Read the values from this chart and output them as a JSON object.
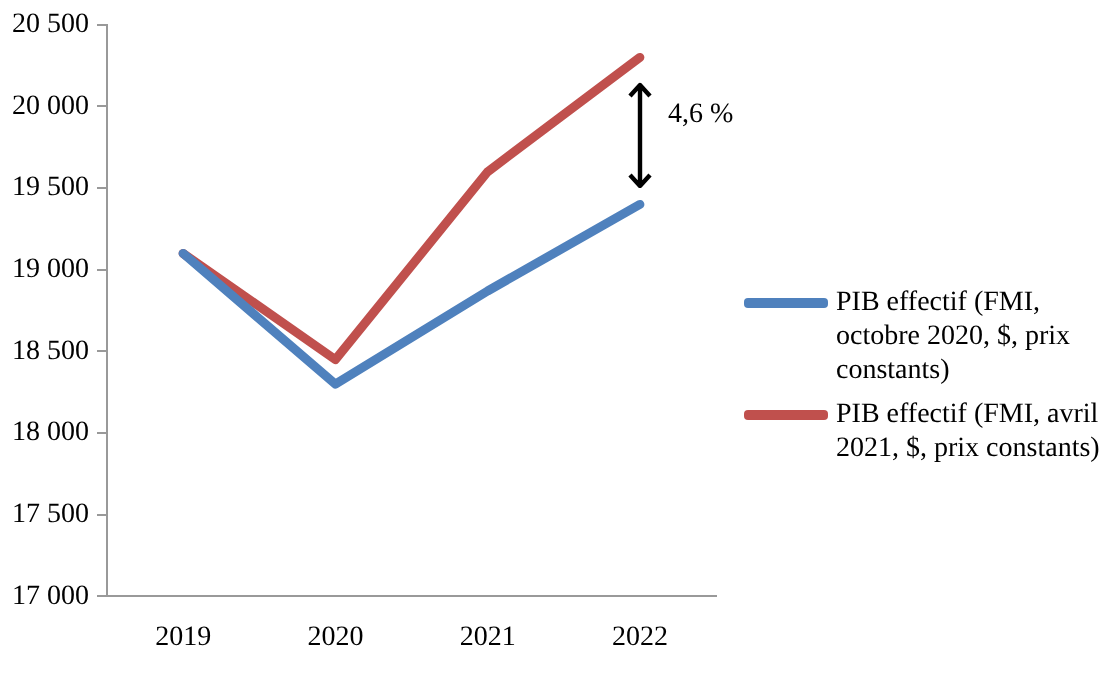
{
  "chart_data": {
    "type": "line",
    "categories": [
      "2019",
      "2020",
      "2021",
      "2022"
    ],
    "series": [
      {
        "name": "PIB effectif (FMI, octobre 2020, $, prix constants)",
        "color": "#4f81bd",
        "values": [
          19100,
          18300,
          18870,
          19400
        ]
      },
      {
        "name": "PIB effectif (FMI, avril 2021, $, prix constants)",
        "color": "#c0504d",
        "values": [
          19100,
          18450,
          19600,
          20300
        ]
      }
    ],
    "ylim": [
      17000,
      20500
    ],
    "yticks": [
      {
        "value": 17000,
        "label": "17 000"
      },
      {
        "value": 17500,
        "label": "17 500"
      },
      {
        "value": 18000,
        "label": "18 000"
      },
      {
        "value": 18500,
        "label": "18 500"
      },
      {
        "value": 19000,
        "label": "19 000"
      },
      {
        "value": 19500,
        "label": "19 500"
      },
      {
        "value": 20000,
        "label": "20 000"
      },
      {
        "value": 20500,
        "label": "20 500"
      }
    ],
    "annotations": [
      "4,6 %"
    ],
    "grid": false,
    "legend": "right",
    "marker": "none",
    "line_style": "solid"
  }
}
